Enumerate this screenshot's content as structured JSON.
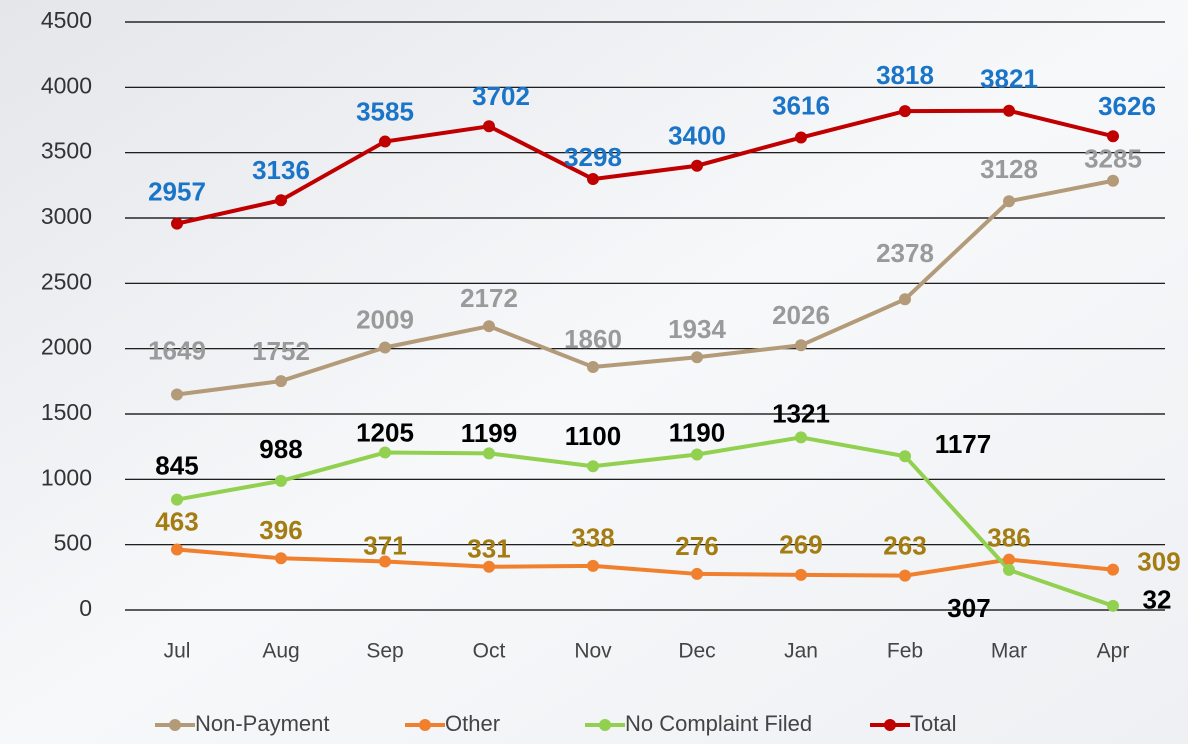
{
  "chart_data": {
    "type": "line",
    "categories": [
      "Jul",
      "Aug",
      "Sep",
      "Oct",
      "Nov",
      "Dec",
      "Jan",
      "Feb",
      "Mar",
      "Apr"
    ],
    "series": [
      {
        "name": "Non-Payment",
        "color": "#b39b7a",
        "label_color": "#9a9a9a",
        "values": [
          1649,
          1752,
          2009,
          2172,
          1860,
          1934,
          2026,
          2378,
          3128,
          3285
        ]
      },
      {
        "name": "Other",
        "color": "#f0802e",
        "label_color": "#a37c12",
        "values": [
          463,
          396,
          371,
          331,
          338,
          276,
          269,
          263,
          386,
          309
        ]
      },
      {
        "name": "No Complaint Filed",
        "color": "#92d050",
        "label_color": "#000000",
        "values": [
          845,
          988,
          1205,
          1199,
          1100,
          1190,
          1321,
          1177,
          307,
          32
        ]
      },
      {
        "name": "Total",
        "color": "#c00000",
        "label_color": "#1a75c8",
        "values": [
          2957,
          3136,
          3585,
          3702,
          3298,
          3400,
          3616,
          3818,
          3821,
          3626
        ]
      }
    ],
    "ylim": [
      0,
      4500
    ],
    "yticks": [
      0,
      500,
      1000,
      1500,
      2000,
      2500,
      3000,
      3500,
      4000,
      4500
    ],
    "grid": true
  }
}
